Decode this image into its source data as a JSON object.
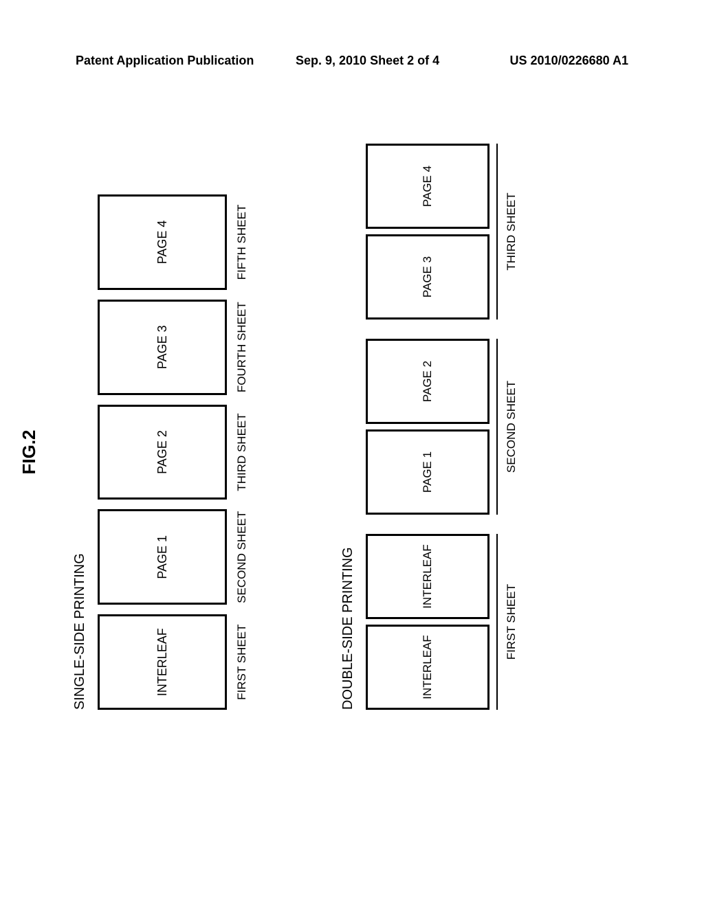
{
  "header": {
    "left": "Patent Application Publication",
    "center": "Sep. 9, 2010   Sheet 2 of 4",
    "right": "US 2010/0226680 A1"
  },
  "figure": {
    "label": "FIG.2",
    "single": {
      "title": "SINGLE-SIDE PRINTING",
      "pages": [
        "INTERLEAF",
        "PAGE 1",
        "PAGE 2",
        "PAGE 3",
        "PAGE 4"
      ],
      "sheets": [
        "FIRST SHEET",
        "SECOND SHEET",
        "THIRD SHEET",
        "FOURTH SHEET",
        "FIFTH SHEET"
      ]
    },
    "double": {
      "title": "DOUBLE-SIDE PRINTING",
      "groups": [
        {
          "pages": [
            "INTERLEAF",
            "INTERLEAF"
          ],
          "sheet": "FIRST SHEET"
        },
        {
          "pages": [
            "PAGE 1",
            "PAGE 2"
          ],
          "sheet": "SECOND SHEET"
        },
        {
          "pages": [
            "PAGE 3",
            "PAGE 4"
          ],
          "sheet": "THIRD SHEET"
        }
      ]
    }
  }
}
